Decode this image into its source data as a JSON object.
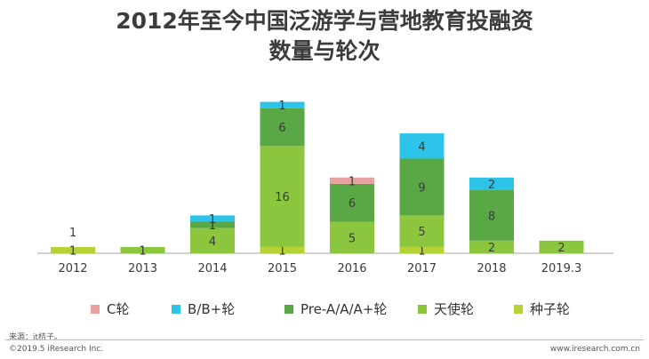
{
  "title_line1": "2012年至今中国泛游学与营地教育投融资",
  "title_line2": "数量与轮次",
  "chart_data": {
    "type": "bar",
    "stacked": true,
    "categories": [
      "2012",
      "2013",
      "2014",
      "2015",
      "2016",
      "2017",
      "2018",
      "2019.3"
    ],
    "series": [
      {
        "name": "种子轮",
        "color": "#b5d334",
        "values": [
          1,
          0,
          0,
          1,
          0,
          1,
          0,
          0
        ]
      },
      {
        "name": "天使轮",
        "color": "#8cc63f",
        "values": [
          0,
          1,
          4,
          16,
          5,
          5,
          2,
          2
        ]
      },
      {
        "name": "Pre-A/A/A+轮",
        "color": "#5aa845",
        "values": [
          0,
          0,
          1,
          6,
          6,
          9,
          8,
          0
        ]
      },
      {
        "name": "B/B+轮",
        "color": "#2ec4e9",
        "values": [
          0,
          0,
          1,
          1,
          0,
          4,
          2,
          0
        ]
      },
      {
        "name": "C轮",
        "color": "#e8a0a0",
        "values": [
          0,
          0,
          0,
          0,
          1,
          0,
          0,
          0
        ]
      }
    ],
    "extra_labels": [
      {
        "category": "2012",
        "text": "1"
      }
    ],
    "legend_order": [
      "C轮",
      "B/B+轮",
      "Pre-A/A/A+轮",
      "天使轮",
      "种子轮"
    ],
    "legend_position": "bottom",
    "grid": false,
    "ylim": [
      0,
      25
    ]
  },
  "footer": {
    "source": "来源：it桔子。",
    "copyright": "©2019.5 iResearch Inc.",
    "website": "www.iresearch.com.cn"
  }
}
